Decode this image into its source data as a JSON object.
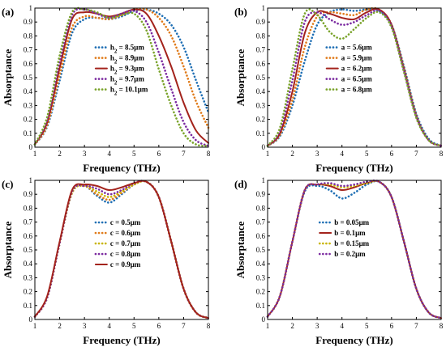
{
  "chart_data": [
    {
      "type": "line",
      "panel_label": "(a)",
      "xlabel": "Frequency (THz)",
      "ylabel": "Absorptance",
      "xlim": [
        1,
        8
      ],
      "ylim": [
        0,
        1
      ],
      "xticks": [
        "1",
        "2",
        "3",
        "4",
        "5",
        "6",
        "7",
        "8"
      ],
      "yticks": [
        "0",
        "0.1",
        "0.2",
        "0.3",
        "0.4",
        "0.5",
        "0.6",
        "0.7",
        "0.8",
        "0.9",
        "1"
      ],
      "grid": false,
      "legend_position": "center",
      "x": [
        1.0,
        1.5,
        2.0,
        2.5,
        3.0,
        3.5,
        4.0,
        4.5,
        5.0,
        5.5,
        6.0,
        6.5,
        7.0,
        7.5,
        8.0
      ],
      "series": [
        {
          "name": "h = 8.5μm",
          "legend_base": "h",
          "legend_sub": "2",
          "legend_rest": " = 8.5μm",
          "color": "#1f6fb4",
          "style": "dotted",
          "values": [
            0.02,
            0.15,
            0.48,
            0.82,
            0.92,
            0.93,
            0.92,
            0.94,
            0.98,
            0.99,
            0.96,
            0.88,
            0.72,
            0.48,
            0.25
          ]
        },
        {
          "name": "h = 8.9μm",
          "legend_base": "h",
          "legend_sub": "2",
          "legend_rest": " = 8.9μm",
          "color": "#e07b1a",
          "style": "dotted",
          "values": [
            0.02,
            0.16,
            0.52,
            0.86,
            0.94,
            0.93,
            0.92,
            0.95,
            0.99,
            0.99,
            0.93,
            0.8,
            0.58,
            0.33,
            0.14
          ]
        },
        {
          "name": "h = 9.3μm",
          "legend_base": "h",
          "legend_sub": "2",
          "legend_rest": " = 9.3μm",
          "color": "#a3231c",
          "style": "solid",
          "values": [
            0.02,
            0.18,
            0.57,
            0.92,
            0.97,
            0.96,
            0.94,
            0.96,
            0.99,
            0.96,
            0.8,
            0.58,
            0.32,
            0.12,
            0.03
          ]
        },
        {
          "name": "h = 9.7μm",
          "legend_base": "h",
          "legend_sub": "2",
          "legend_rest": " = 9.7μm",
          "color": "#7b2aa0",
          "style": "dotted",
          "values": [
            0.02,
            0.2,
            0.62,
            0.95,
            0.99,
            0.96,
            0.93,
            0.96,
            0.98,
            0.9,
            0.68,
            0.42,
            0.18,
            0.05,
            0.01
          ]
        },
        {
          "name": "h = 10.1μm",
          "legend_base": "h",
          "legend_sub": "2",
          "legend_rest": " = 10.1μm",
          "color": "#7aa32b",
          "style": "dotted",
          "values": [
            0.02,
            0.22,
            0.66,
            0.97,
            0.99,
            0.97,
            0.93,
            0.95,
            0.96,
            0.84,
            0.56,
            0.3,
            0.1,
            0.02,
            0.01
          ]
        }
      ]
    },
    {
      "type": "line",
      "panel_label": "(b)",
      "xlabel": "Frequency (THz)",
      "ylabel": "Absorptance",
      "xlim": [
        1,
        8
      ],
      "ylim": [
        0,
        1
      ],
      "xticks": [
        "1",
        "2",
        "3",
        "4",
        "5",
        "6",
        "7",
        "8"
      ],
      "yticks": [
        "0",
        "0.1",
        "0.2",
        "0.3",
        "0.4",
        "0.5",
        "0.6",
        "0.7",
        "0.8",
        "0.9",
        "1"
      ],
      "grid": false,
      "legend_position": "center",
      "x": [
        1.0,
        1.5,
        2.0,
        2.5,
        3.0,
        3.5,
        4.0,
        4.5,
        5.0,
        5.5,
        6.0,
        6.5,
        7.0,
        7.5,
        8.0
      ],
      "series": [
        {
          "name": "a = 5.6μm",
          "legend_base": "a = 5.6μm",
          "color": "#1f6fb4",
          "style": "dotted",
          "values": [
            0.01,
            0.08,
            0.3,
            0.62,
            0.88,
            0.97,
            0.99,
            0.98,
            0.99,
            0.98,
            0.88,
            0.58,
            0.24,
            0.06,
            0.01
          ]
        },
        {
          "name": "a = 5.9μm",
          "legend_base": "a = 5.9μm",
          "color": "#e07b1a",
          "style": "dotted",
          "values": [
            0.01,
            0.09,
            0.34,
            0.72,
            0.94,
            0.97,
            0.96,
            0.95,
            0.99,
            0.99,
            0.88,
            0.57,
            0.23,
            0.05,
            0.01
          ]
        },
        {
          "name": "a = 6.2μm",
          "legend_base": "a = 6.2μm",
          "color": "#a3231c",
          "style": "solid",
          "values": [
            0.01,
            0.1,
            0.4,
            0.82,
            0.97,
            0.96,
            0.93,
            0.92,
            0.97,
            0.99,
            0.88,
            0.56,
            0.22,
            0.05,
            0.01
          ]
        },
        {
          "name": "a = 6.5μm",
          "legend_base": "a = 6.5μm",
          "color": "#7b2aa0",
          "style": "dotted",
          "values": [
            0.01,
            0.12,
            0.48,
            0.9,
            0.97,
            0.92,
            0.88,
            0.9,
            0.95,
            0.98,
            0.87,
            0.55,
            0.22,
            0.05,
            0.01
          ]
        },
        {
          "name": "a = 6.8μm",
          "legend_base": "a = 6.8μm",
          "color": "#7aa32b",
          "style": "dotted",
          "values": [
            0.01,
            0.14,
            0.56,
            0.96,
            0.95,
            0.83,
            0.78,
            0.85,
            0.93,
            0.97,
            0.86,
            0.54,
            0.21,
            0.05,
            0.01
          ]
        }
      ]
    },
    {
      "type": "line",
      "panel_label": "(c)",
      "xlabel": "Frequency (THz)",
      "ylabel": "Absorptance",
      "xlim": [
        1,
        8
      ],
      "ylim": [
        0,
        1
      ],
      "xticks": [
        "1",
        "2",
        "3",
        "4",
        "5",
        "6",
        "7",
        "8"
      ],
      "yticks": [
        "0",
        "0.1",
        "0.2",
        "0.3",
        "0.4",
        "0.5",
        "0.6",
        "0.7",
        "0.8",
        "0.9",
        "1"
      ],
      "grid": false,
      "legend_position": "center",
      "x": [
        1.0,
        1.5,
        2.0,
        2.5,
        3.0,
        3.5,
        4.0,
        4.5,
        5.0,
        5.5,
        6.0,
        6.5,
        7.0,
        7.5,
        8.0
      ],
      "series": [
        {
          "name": "c = 0.5μm",
          "legend_base": "c = 0.5μm",
          "color": "#1f6fb4",
          "style": "dotted",
          "values": [
            0.02,
            0.16,
            0.55,
            0.91,
            0.96,
            0.89,
            0.84,
            0.9,
            0.97,
            0.99,
            0.88,
            0.56,
            0.22,
            0.05,
            0.01
          ]
        },
        {
          "name": "c = 0.6μm",
          "legend_base": "c = 0.6μm",
          "color": "#e07b1a",
          "style": "dotted",
          "values": [
            0.02,
            0.16,
            0.55,
            0.91,
            0.96,
            0.9,
            0.86,
            0.91,
            0.97,
            0.99,
            0.88,
            0.56,
            0.22,
            0.05,
            0.01
          ]
        },
        {
          "name": "c = 0.7μm",
          "legend_base": "c = 0.7μm",
          "color": "#c8b400",
          "style": "dotted",
          "values": [
            0.02,
            0.16,
            0.55,
            0.91,
            0.96,
            0.92,
            0.88,
            0.92,
            0.97,
            0.99,
            0.88,
            0.56,
            0.22,
            0.05,
            0.01
          ]
        },
        {
          "name": "c = 0.8μm",
          "legend_base": "c = 0.8μm",
          "color": "#7b2aa0",
          "style": "dotted",
          "values": [
            0.02,
            0.16,
            0.55,
            0.92,
            0.96,
            0.94,
            0.9,
            0.93,
            0.98,
            0.99,
            0.88,
            0.56,
            0.22,
            0.05,
            0.01
          ]
        },
        {
          "name": "c = 0.9μm",
          "legend_base": "c = 0.9μm",
          "color": "#a3231c",
          "style": "solid",
          "values": [
            0.02,
            0.17,
            0.56,
            0.93,
            0.97,
            0.96,
            0.93,
            0.95,
            0.98,
            0.99,
            0.88,
            0.56,
            0.22,
            0.05,
            0.01
          ]
        }
      ]
    },
    {
      "type": "line",
      "panel_label": "(d)",
      "xlabel": "Frequency (THz)",
      "ylabel": "Absorptance",
      "xlim": [
        1,
        8
      ],
      "ylim": [
        0,
        1
      ],
      "xticks": [
        "1",
        "2",
        "3",
        "4",
        "5",
        "6",
        "7",
        "8"
      ],
      "yticks": [
        "0",
        "0.1",
        "0.2",
        "0.3",
        "0.4",
        "0.5",
        "0.6",
        "0.7",
        "0.8",
        "0.9",
        "1"
      ],
      "grid": false,
      "legend_position": "center",
      "x": [
        1.0,
        1.5,
        2.0,
        2.5,
        3.0,
        3.5,
        4.0,
        4.5,
        5.0,
        5.5,
        6.0,
        6.5,
        7.0,
        7.5,
        8.0
      ],
      "series": [
        {
          "name": "b = 0.05μm",
          "legend_base": "b = 0.05μm",
          "color": "#1f6fb4",
          "style": "dotted",
          "values": [
            0.02,
            0.17,
            0.56,
            0.92,
            0.96,
            0.93,
            0.87,
            0.91,
            0.97,
            0.99,
            0.88,
            0.56,
            0.22,
            0.05,
            0.01
          ]
        },
        {
          "name": "b = 0.1μm",
          "legend_base": "b = 0.1μm",
          "color": "#a3231c",
          "style": "solid",
          "values": [
            0.02,
            0.17,
            0.56,
            0.93,
            0.97,
            0.96,
            0.93,
            0.95,
            0.98,
            0.99,
            0.88,
            0.56,
            0.22,
            0.05,
            0.01
          ]
        },
        {
          "name": "b = 0.15μm",
          "legend_base": "b = 0.15μm",
          "color": "#c8b400",
          "style": "dotted",
          "values": [
            0.02,
            0.17,
            0.56,
            0.93,
            0.97,
            0.97,
            0.95,
            0.96,
            0.98,
            0.99,
            0.88,
            0.56,
            0.22,
            0.05,
            0.01
          ]
        },
        {
          "name": "b = 0.2μm",
          "legend_base": "b = 0.2μm",
          "color": "#7b2aa0",
          "style": "dotted",
          "values": [
            0.02,
            0.17,
            0.56,
            0.93,
            0.97,
            0.98,
            0.96,
            0.97,
            0.99,
            0.99,
            0.88,
            0.56,
            0.22,
            0.05,
            0.01
          ]
        }
      ]
    }
  ]
}
